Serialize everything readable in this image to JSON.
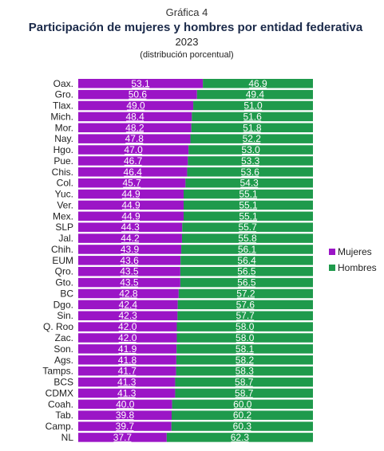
{
  "chart_data": {
    "type": "bar",
    "orientation": "horizontal",
    "stacked": true,
    "supertitle": "Gráfica 4",
    "title": "Participación de mujeres y hombres por entidad federativa",
    "year": "2023",
    "subtitle": "(distribución porcentual)",
    "xlim": [
      0,
      100
    ],
    "grid": false,
    "legend_position": "right",
    "categories": [
      "Oax.",
      "Gro.",
      "Tlax.",
      "Mich.",
      "Mor.",
      "Nay.",
      "Hgo.",
      "Pue.",
      "Chis.",
      "Col.",
      "Yuc.",
      "Ver.",
      "Mex.",
      "SLP",
      "Jal.",
      "Chih.",
      "EUM",
      "Qro.",
      "Gto.",
      "BC",
      "Dgo.",
      "Sin.",
      "Q. Roo",
      "Zac.",
      "Son.",
      "Ags.",
      "Tamps.",
      "BCS",
      "CDMX",
      "Coah.",
      "Tab.",
      "Camp.",
      "NL"
    ],
    "series": [
      {
        "name": "Mujeres",
        "color": "#9b15c6",
        "values": [
          53.1,
          50.6,
          49.0,
          48.4,
          48.2,
          47.8,
          47.0,
          46.7,
          46.4,
          45.7,
          44.9,
          44.9,
          44.9,
          44.3,
          44.2,
          43.9,
          43.6,
          43.5,
          43.5,
          42.8,
          42.4,
          42.3,
          42.0,
          42.0,
          41.9,
          41.8,
          41.7,
          41.3,
          41.3,
          40.0,
          39.8,
          39.7,
          37.7
        ],
        "labels": [
          "53.1",
          "50.6",
          "49.0",
          "48.4",
          "48.2",
          "47.8",
          "47.0",
          "46.7",
          "46.4",
          "45.7",
          "44.9",
          "44.9",
          "44.9",
          "44.3",
          "44.2",
          "43.9",
          "43.6",
          "43.5",
          "43.5",
          "42.8",
          "42.4",
          "42.3",
          "42.0",
          "42.0",
          "41.9",
          "41.8",
          "41.7",
          "41.3",
          "41.3",
          "40.0",
          "39.8",
          "39.7",
          "37.7"
        ]
      },
      {
        "name": "Hombres",
        "color": "#1f9a4c",
        "values": [
          46.9,
          49.4,
          51.0,
          51.6,
          51.8,
          52.2,
          53.0,
          53.3,
          53.6,
          54.3,
          55.1,
          55.1,
          55.1,
          55.7,
          55.8,
          56.1,
          56.4,
          56.5,
          56.5,
          57.2,
          57.6,
          57.7,
          58.0,
          58.0,
          58.1,
          58.2,
          58.3,
          58.7,
          58.7,
          60.0,
          60.2,
          60.3,
          62.3
        ],
        "labels": [
          "46.9",
          "49.4",
          "51.0",
          "51.6",
          "51.8",
          "52.2",
          "53.0",
          "53.3",
          "53.6",
          "54.3",
          "55.1",
          "55.1",
          "55.1",
          "55.7",
          "55.8",
          "56.1",
          "56.4",
          "56.5",
          "56.5",
          "57.2",
          "57.6",
          "57.7",
          "58.0",
          "58.0",
          "58.1",
          "58.2",
          "58.3",
          "58.7",
          "58.7",
          "60.0",
          "60.2",
          "60.3",
          "62.3"
        ]
      }
    ]
  }
}
